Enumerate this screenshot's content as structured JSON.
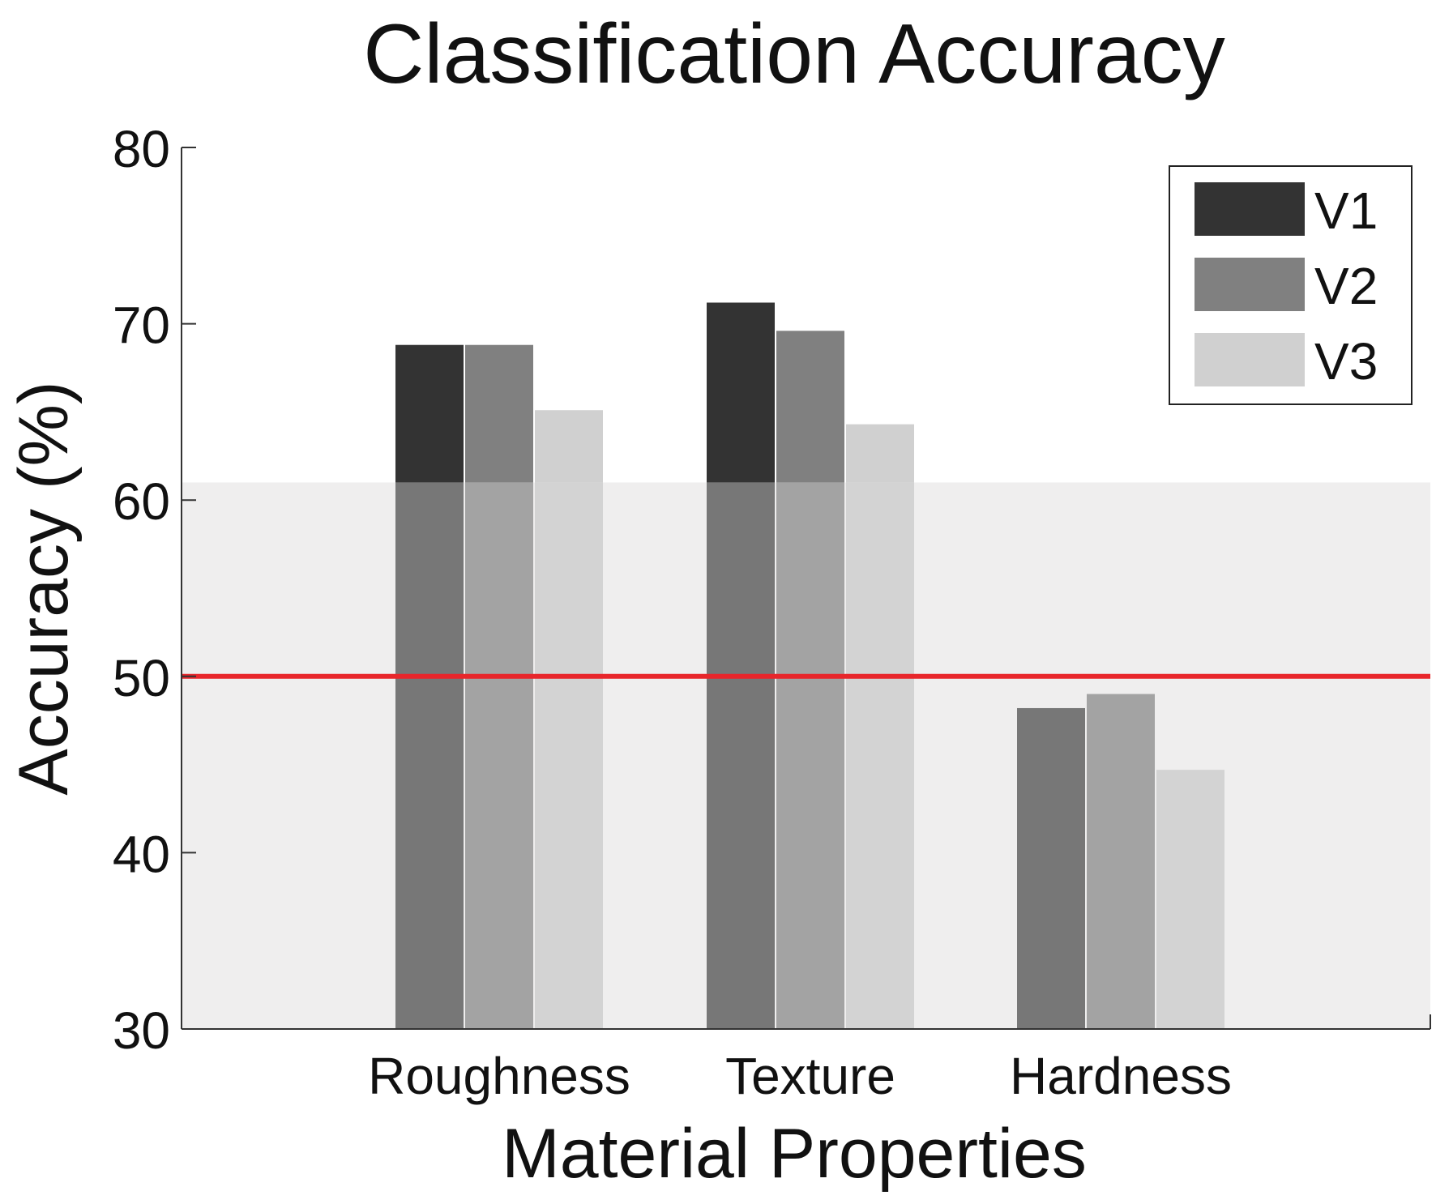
{
  "chart_data": {
    "type": "bar",
    "title": "Classification Accuracy",
    "xlabel": "Material Properties",
    "ylabel": "Accuracy (%)",
    "categories": [
      "Roughness",
      "Texture",
      "Hardness"
    ],
    "series": [
      {
        "name": "V1",
        "values": [
          68.8,
          71.2,
          48.2
        ]
      },
      {
        "name": "V2",
        "values": [
          68.8,
          69.6,
          49.0
        ]
      },
      {
        "name": "V3",
        "values": [
          65.1,
          64.3,
          44.7
        ]
      }
    ],
    "ylim": [
      30,
      80
    ],
    "yticks": [
      30,
      40,
      50,
      60,
      70,
      80
    ],
    "reference_line": {
      "value": 50,
      "color": "#e8262b"
    },
    "shaded_band": {
      "from": 30,
      "to": 61,
      "color": "#efeeee"
    },
    "colors": {
      "above_band": [
        "#333333",
        "#808080",
        "#d0d0d0"
      ],
      "within_band": [
        "#777777",
        "#a3a3a3",
        "#d3d3d3"
      ]
    },
    "legend_position": "top-right",
    "grid": false
  }
}
